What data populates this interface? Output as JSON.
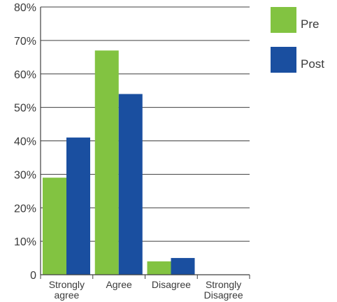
{
  "chart_data": {
    "type": "bar",
    "title": "",
    "xlabel": "",
    "ylabel": "",
    "categories": [
      "Strongly agree",
      "Agree",
      "Disagree",
      "Strongly Disagree"
    ],
    "category_label_lines": [
      [
        "Strongly",
        "agree"
      ],
      [
        "Agree"
      ],
      [
        "Disagree"
      ],
      [
        "Strongly",
        "Disagree"
      ]
    ],
    "series": [
      {
        "name": "Pre",
        "color": "#82c341",
        "values": [
          29,
          67,
          4,
          0
        ]
      },
      {
        "name": "Post",
        "color": "#1a4fa0",
        "values": [
          41,
          54,
          5,
          0
        ]
      }
    ],
    "ylim": [
      0,
      80
    ],
    "yticks": [
      {
        "value": 0,
        "label": "0"
      },
      {
        "value": 10,
        "label": "10%"
      },
      {
        "value": 20,
        "label": "20%"
      },
      {
        "value": 30,
        "label": "30%"
      },
      {
        "value": 40,
        "label": "40%"
      },
      {
        "value": 50,
        "label": "50%"
      },
      {
        "value": 60,
        "label": "60%"
      },
      {
        "value": 70,
        "label": "70%"
      },
      {
        "value": 80,
        "label": "80%"
      }
    ],
    "grid": true,
    "legend_position": "top-right"
  }
}
